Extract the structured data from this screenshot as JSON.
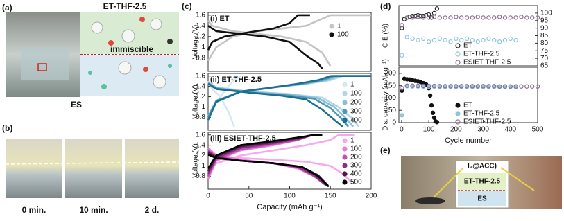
{
  "panel_labels": [
    "(a)",
    "(b)",
    "(c)",
    "(d)",
    "(e)"
  ],
  "panel_a": {
    "top_label": "ET-THF-2.5",
    "middle_label": "immiscible",
    "bottom_label": "ES"
  },
  "panel_b": {
    "captions": [
      "0 min.",
      "10 min.",
      "2 d."
    ]
  },
  "panel_e": {
    "callout": "I₂@ACC)",
    "upper_layer": "ET-THF-2.5",
    "lower_layer": "ES"
  },
  "chart_data": [
    {
      "type": "line",
      "title": "(i) ET",
      "ylabel": "Voltage (V)",
      "xlim": [
        0,
        200
      ],
      "ylim": [
        0.55,
        1.65
      ],
      "yticks": [
        0.8,
        1.0,
        1.2,
        1.4,
        1.6
      ],
      "series": [
        {
          "name": "1",
          "color": "#c4c4c4",
          "x": [
            0,
            10,
            30,
            60,
            90,
            120,
            150,
            200,
            null,
            0,
            5,
            30,
            60,
            90,
            120,
            140,
            150
          ],
          "values": [
            0.75,
            1.0,
            1.2,
            1.3,
            1.35,
            1.4,
            1.6,
            1.6,
            null,
            1.5,
            1.4,
            1.3,
            1.25,
            1.2,
            1.1,
            0.9,
            0.65
          ]
        },
        {
          "name": "100",
          "color": "#111111",
          "x": [
            0,
            5,
            20,
            50,
            80,
            100,
            110,
            125,
            null,
            0,
            10,
            40,
            70,
            100,
            120,
            135,
            140
          ],
          "values": [
            0.95,
            1.1,
            1.2,
            1.28,
            1.35,
            1.45,
            1.6,
            1.6,
            null,
            1.4,
            1.3,
            1.25,
            1.2,
            1.1,
            0.85,
            0.7,
            0.6
          ]
        }
      ]
    },
    {
      "type": "line",
      "title": "(ii) ET-THF-2.5",
      "ylabel": "Voltage (V)",
      "xlim": [
        0,
        200
      ],
      "ylim": [
        0.55,
        1.65
      ],
      "yticks": [
        0.8,
        1.0,
        1.2,
        1.4,
        1.6
      ],
      "series": [
        {
          "name": "1",
          "color": "#d6e8f1",
          "x": [
            0,
            10,
            20,
            30,
            40,
            null,
            0,
            5,
            15,
            25,
            32
          ],
          "values": [
            0.75,
            1.1,
            1.3,
            1.5,
            1.6,
            null,
            1.5,
            1.35,
            1.2,
            0.9,
            0.62
          ]
        },
        {
          "name": "100",
          "color": "#b3d5e5",
          "x": [
            0,
            10,
            40,
            80,
            120,
            150,
            165,
            200,
            null,
            0,
            10,
            50,
            100,
            140,
            160,
            175,
            185
          ],
          "values": [
            0.8,
            1.1,
            1.3,
            1.38,
            1.45,
            1.52,
            1.6,
            1.6,
            null,
            1.48,
            1.38,
            1.3,
            1.25,
            1.18,
            1.0,
            0.8,
            0.62
          ]
        },
        {
          "name": "200",
          "color": "#88c0d8",
          "x": [
            0,
            10,
            40,
            80,
            120,
            145,
            160,
            200,
            null,
            0,
            10,
            50,
            100,
            135,
            155,
            168,
            178
          ],
          "values": [
            0.82,
            1.12,
            1.3,
            1.38,
            1.45,
            1.52,
            1.6,
            1.6,
            null,
            1.47,
            1.37,
            1.29,
            1.24,
            1.17,
            1.0,
            0.8,
            0.62
          ]
        },
        {
          "name": "300",
          "color": "#4f98b6",
          "x": [
            0,
            10,
            40,
            80,
            115,
            140,
            155,
            200,
            null,
            0,
            10,
            50,
            95,
            130,
            150,
            162,
            172
          ],
          "values": [
            0.8,
            1.12,
            1.3,
            1.38,
            1.45,
            1.52,
            1.6,
            1.6,
            null,
            1.46,
            1.36,
            1.28,
            1.23,
            1.16,
            0.98,
            0.8,
            0.62
          ]
        },
        {
          "name": "400",
          "color": "#1e6e92",
          "x": [
            0,
            10,
            40,
            80,
            110,
            135,
            150,
            200,
            null,
            0,
            10,
            50,
            90,
            120,
            140,
            155,
            165
          ],
          "values": [
            0.75,
            1.1,
            1.3,
            1.38,
            1.45,
            1.52,
            1.6,
            1.6,
            null,
            1.45,
            1.35,
            1.28,
            1.22,
            1.15,
            0.95,
            0.75,
            0.62
          ]
        }
      ]
    },
    {
      "type": "line",
      "title": "(iii) ESIET-THF-2.5",
      "ylabel": "Voltage (V)",
      "xlabel": "Capacity (mAh g⁻¹)",
      "xlim": [
        0,
        200
      ],
      "ylim": [
        0.55,
        1.65
      ],
      "yticks": [
        0.8,
        1.0,
        1.2,
        1.4,
        1.6
      ],
      "xticks": [
        0,
        50,
        100,
        150,
        200
      ],
      "series": [
        {
          "name": "1",
          "color": "#f6a8ee",
          "x": [
            0,
            10,
            40,
            80,
            120,
            150,
            160,
            180,
            null,
            0,
            10,
            40,
            80,
            120,
            150,
            165,
            175
          ],
          "values": [
            0.9,
            1.05,
            1.2,
            1.3,
            1.4,
            1.5,
            1.6,
            1.6,
            null,
            1.3,
            1.2,
            1.15,
            1.12,
            1.08,
            1.0,
            0.85,
            0.7
          ]
        },
        {
          "name": "100",
          "color": "#e77edc",
          "x": [
            0,
            10,
            40,
            80,
            110,
            125,
            140,
            null,
            0,
            10,
            40,
            80,
            110,
            130,
            145
          ],
          "values": [
            0.75,
            1.1,
            1.3,
            1.4,
            1.5,
            1.6,
            1.6,
            null,
            1.35,
            1.2,
            1.12,
            1.05,
            0.95,
            0.8,
            0.62
          ]
        },
        {
          "name": "200",
          "color": "#c250b6",
          "x": [
            0,
            10,
            40,
            80,
            110,
            128,
            140,
            null,
            0,
            10,
            40,
            80,
            110,
            130,
            145
          ],
          "values": [
            0.8,
            1.12,
            1.32,
            1.42,
            1.5,
            1.6,
            1.6,
            null,
            1.3,
            1.18,
            1.1,
            1.05,
            0.97,
            0.8,
            0.62
          ]
        },
        {
          "name": "300",
          "color": "#8c2f7f",
          "x": [
            0,
            10,
            40,
            80,
            110,
            128,
            140,
            null,
            0,
            10,
            40,
            80,
            110,
            130,
            145
          ],
          "values": [
            0.85,
            1.15,
            1.35,
            1.44,
            1.52,
            1.6,
            1.6,
            null,
            1.28,
            1.17,
            1.1,
            1.05,
            0.98,
            0.82,
            0.62
          ]
        },
        {
          "name": "400",
          "color": "#4b1944",
          "x": [
            0,
            10,
            40,
            80,
            110,
            130,
            140,
            null,
            0,
            10,
            40,
            80,
            115,
            135,
            147
          ],
          "values": [
            0.9,
            1.18,
            1.38,
            1.46,
            1.54,
            1.6,
            1.6,
            null,
            1.25,
            1.16,
            1.1,
            1.05,
            0.98,
            0.82,
            0.62
          ]
        },
        {
          "name": "500",
          "color": "#000000",
          "x": [
            0,
            10,
            40,
            80,
            110,
            132,
            140,
            null,
            0,
            10,
            40,
            80,
            115,
            135,
            148
          ],
          "values": [
            0.95,
            1.2,
            1.4,
            1.48,
            1.55,
            1.6,
            1.6,
            null,
            1.22,
            1.15,
            1.1,
            1.05,
            0.98,
            0.8,
            0.6
          ]
        }
      ]
    },
    {
      "type": "scatter",
      "ylabel": "C.E (%)",
      "xlim": [
        -10,
        500
      ],
      "ylim": [
        65,
        105
      ],
      "yticks": [
        65,
        70,
        75,
        80,
        85,
        90,
        95,
        100
      ],
      "series": [
        {
          "name": "ET",
          "color": "#222222",
          "hollow": true,
          "x": [
            1,
            10,
            20,
            30,
            40,
            50,
            60,
            70,
            80,
            90,
            100,
            110,
            120,
            130
          ],
          "values": [
            90,
            96,
            97,
            97.5,
            98,
            98,
            98.5,
            98,
            98,
            98.5,
            99,
            97,
            100,
            103
          ]
        },
        {
          "name": "ET-THF-2.5",
          "color": "#8ec6dd",
          "hollow": true,
          "x": [
            1,
            20,
            40,
            60,
            80,
            100,
            120,
            140,
            160,
            180,
            200,
            220,
            240,
            260,
            280,
            300,
            320,
            340,
            360,
            380,
            400,
            420
          ],
          "values": [
            72,
            84,
            83,
            82,
            83,
            81,
            82,
            83,
            82,
            81,
            83,
            82,
            83,
            82,
            81,
            82,
            83,
            82,
            81,
            82,
            83,
            82
          ]
        },
        {
          "name": "ESIET-THF-2.5",
          "color": "#8a6c92",
          "hollow": true,
          "x": [
            1,
            20,
            40,
            60,
            80,
            100,
            120,
            140,
            160,
            180,
            200,
            220,
            240,
            260,
            280,
            300,
            320,
            340,
            360,
            380,
            400,
            420,
            440,
            460,
            480,
            500
          ],
          "values": [
            92,
            97,
            97,
            97.5,
            97,
            97,
            97.5,
            97,
            97,
            97,
            97.5,
            97,
            97,
            97,
            97.5,
            97,
            97,
            97,
            97.5,
            97,
            97,
            97,
            97.5,
            97,
            97,
            97
          ]
        }
      ]
    },
    {
      "type": "scatter",
      "ylabel": "Dis. capacity (mAh g⁻¹)",
      "xlabel": "Cycle number",
      "xlim": [
        -10,
        500
      ],
      "ylim": [
        0,
        225
      ],
      "yticks": [
        0,
        50,
        100,
        150,
        200
      ],
      "xticks": [
        0,
        100,
        200,
        300,
        400,
        500
      ],
      "series": [
        {
          "name": "ET",
          "color": "#111111",
          "hollow": false,
          "x": [
            1,
            10,
            20,
            30,
            40,
            50,
            60,
            70,
            80,
            90,
            100,
            105,
            110,
            115,
            120,
            125,
            130
          ],
          "values": [
            130,
            178,
            176,
            175,
            172,
            170,
            168,
            165,
            160,
            155,
            140,
            110,
            70,
            40,
            20,
            5,
            2
          ]
        },
        {
          "name": "ET-THF-2.5",
          "color": "#8ec6dd",
          "hollow": false,
          "x": [
            1,
            20,
            40,
            60,
            80,
            100,
            120,
            140,
            160,
            180,
            200,
            220,
            240,
            260,
            280,
            300,
            320,
            340,
            360,
            380,
            400,
            420
          ],
          "values": [
            30,
            148,
            147,
            147,
            146,
            146,
            146,
            145,
            145,
            145,
            145,
            145,
            145,
            145,
            145,
            145,
            145,
            145,
            145,
            145,
            145,
            145
          ]
        },
        {
          "name": "ESIET-THF-2.5",
          "color": "#8a6c92",
          "hollow": true,
          "x": [
            1,
            20,
            40,
            60,
            80,
            100,
            120,
            140,
            160,
            180,
            200,
            220,
            240,
            260,
            280,
            300,
            320,
            340,
            360,
            380,
            400,
            420,
            440,
            460,
            480,
            500
          ],
          "values": [
            140,
            150,
            150,
            149,
            149,
            149,
            149,
            148,
            148,
            148,
            148,
            148,
            148,
            148,
            148,
            148,
            148,
            148,
            147,
            147,
            147,
            147,
            147,
            147,
            147,
            147
          ]
        }
      ]
    }
  ]
}
